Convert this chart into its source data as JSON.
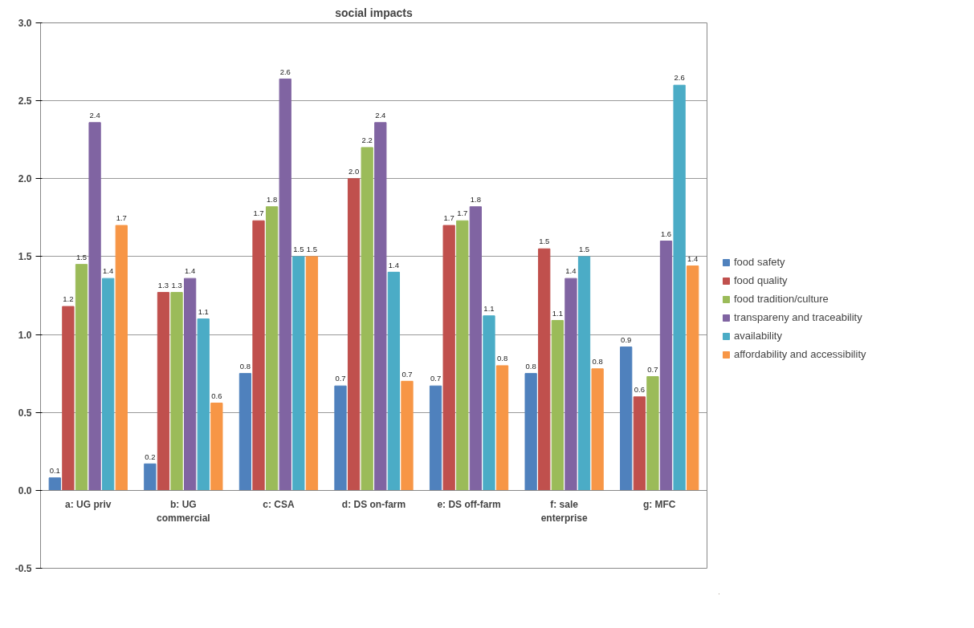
{
  "chart_data": {
    "type": "bar",
    "title": "social impacts",
    "categories": [
      "a: UG priv",
      "b: UG commercial",
      "c: CSA",
      "d: DS on-farm",
      "e: DS off-farm",
      "f: sale enterprise",
      "g: MFC"
    ],
    "series": [
      {
        "name": "food safety",
        "color": "#4f81bd",
        "values": [
          0.08,
          0.17,
          0.75,
          0.67,
          0.67,
          0.75,
          0.92
        ],
        "value_labels": [
          "0.1",
          "0.2",
          "0.8",
          "0.7",
          "0.7",
          "0.8",
          "0.9"
        ]
      },
      {
        "name": "food quality",
        "color": "#c0504d",
        "values": [
          1.18,
          1.27,
          1.73,
          2.0,
          1.7,
          1.55,
          0.6
        ],
        "value_labels": [
          "1.2",
          "1.3",
          "1.7",
          "2.0",
          "1.7",
          "1.5",
          "0.6"
        ]
      },
      {
        "name": "food tradition/culture",
        "color": "#9bbb59",
        "values": [
          1.45,
          1.27,
          1.82,
          2.2,
          1.73,
          1.09,
          0.73
        ],
        "value_labels": [
          "1.5",
          "1.3",
          "1.8",
          "2.2",
          "1.7",
          "1.1",
          "0.7"
        ]
      },
      {
        "name": "transpareny and traceability",
        "color": "#8064a2",
        "values": [
          2.36,
          1.36,
          2.64,
          2.36,
          1.82,
          1.36,
          1.6
        ],
        "value_labels": [
          "2.4",
          "1.4",
          "2.6",
          "2.4",
          "1.8",
          "1.4",
          "1.6"
        ]
      },
      {
        "name": "availability",
        "color": "#4bacc6",
        "values": [
          1.36,
          1.1,
          1.5,
          1.4,
          1.12,
          1.5,
          2.6
        ],
        "value_labels": [
          "1.4",
          "1.1",
          "1.5",
          "1.4",
          "1.1",
          "1.5",
          "2.6"
        ]
      },
      {
        "name": "affordability and accessibility",
        "color": "#f79646",
        "values": [
          1.7,
          0.56,
          1.5,
          0.7,
          0.8,
          0.78,
          1.44
        ],
        "value_labels": [
          "1.7",
          "0.6",
          "1.5",
          "0.7",
          "0.8",
          "0.8",
          "1.4"
        ]
      }
    ],
    "ylim": [
      -0.5,
      3.0
    ],
    "yticks": [
      {
        "value": -0.5,
        "label": "-0.5"
      },
      {
        "value": 0,
        "label": "0.0"
      },
      {
        "value": 0.5,
        "label": "0.5"
      },
      {
        "value": 1.0,
        "label": "1.0"
      },
      {
        "value": 1.5,
        "label": "1.5"
      },
      {
        "value": 2.0,
        "label": "2.0"
      },
      {
        "value": 2.5,
        "label": "2.5"
      },
      {
        "value": 3.0,
        "label": "3.0"
      }
    ],
    "grid": "y",
    "legend": "right"
  }
}
